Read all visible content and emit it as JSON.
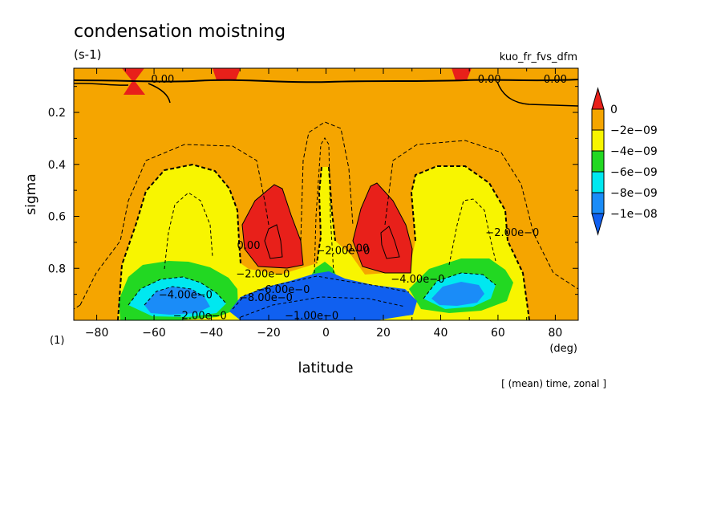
{
  "chart_data": {
    "type": "heatmap",
    "title": "condensation moistning",
    "units": "(s-1)",
    "experiment": "kuo_fr_fvs_dfm",
    "xlabel": "latitude",
    "xunit": "(deg)",
    "ylabel": "sigma",
    "corner_label": "(1)",
    "footer": "[ (mean) time, zonal ]",
    "xlim": [
      -88,
      88
    ],
    "ylim": [
      0.03,
      1.0
    ],
    "y_inverted": true,
    "x_ticks": [
      -80,
      -60,
      -40,
      -20,
      0,
      20,
      40,
      60,
      80
    ],
    "x_tick_labels": [
      "−80",
      "−60",
      "−40",
      "−20",
      "0",
      "20",
      "40",
      "60",
      "80"
    ],
    "y_ticks": [
      0.2,
      0.4,
      0.6,
      0.8
    ],
    "y_tick_labels": [
      "0.2",
      "0.4",
      "0.6",
      "0.8"
    ],
    "colors": {
      "above_0": "#e8201a",
      "m2e9_to_0": "#f5a500",
      "m4e9_to_m2e9": "#f8f500",
      "m6e9_to_m4e9": "#22d822",
      "m8e9_to_m6e9": "#00e8f0",
      "m1e8_to_m8e9": "#1a8cf8",
      "below_m1e8": "#1060f0"
    },
    "colorbar": {
      "labels": [
        "0",
        "−2e−09",
        "−4e−09",
        "−6e−09",
        "−8e−09",
        "−1e−08"
      ],
      "levels": [
        0,
        -2e-09,
        -4e-09,
        -6e-09,
        -8e-09,
        -1e-08
      ]
    },
    "contour_labels": [
      {
        "text": "0.00",
        "lat": -57,
        "sigma": 0.07
      },
      {
        "text": "0.00",
        "lat": 57,
        "sigma": 0.07
      },
      {
        "text": "0.00",
        "lat": 80,
        "sigma": 0.07
      },
      {
        "text": "0.00",
        "lat": -27,
        "sigma": 0.71
      },
      {
        "text": "0.00",
        "lat": 11,
        "sigma": 0.72
      },
      {
        "text": "−2.00e−0",
        "lat": 65,
        "sigma": 0.66
      },
      {
        "text": "−2.00e−0",
        "lat": 6,
        "sigma": 0.73
      },
      {
        "text": "−2.00e−0",
        "lat": -22,
        "sigma": 0.82
      },
      {
        "text": "−2.00e−0",
        "lat": -44,
        "sigma": 0.98
      },
      {
        "text": "−4.00e−0",
        "lat": 32,
        "sigma": 0.84
      },
      {
        "text": "−4.00e−0",
        "lat": -49,
        "sigma": 0.9
      },
      {
        "text": "−6.00e−0",
        "lat": -15,
        "sigma": 0.88
      },
      {
        "text": "−8.00e−0",
        "lat": -21,
        "sigma": 0.91
      },
      {
        "text": "−1.00e−0",
        "lat": -5,
        "sigma": 0.98
      }
    ]
  }
}
